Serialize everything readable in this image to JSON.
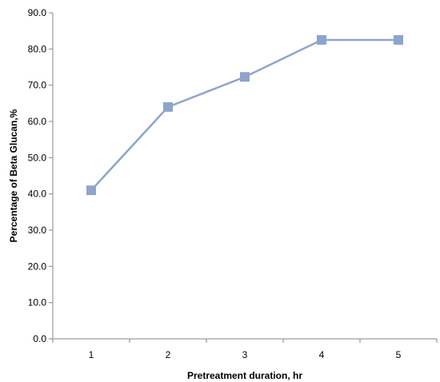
{
  "chart_data": {
    "type": "line",
    "title": "",
    "xlabel": "Pretreatment duration, hr",
    "ylabel": "Percentage of Beta Glucan,%",
    "x": [
      1,
      2,
      3,
      4,
      5
    ],
    "x_tick_labels": [
      "1",
      "2",
      "3",
      "4",
      "5"
    ],
    "y_tick_labels": [
      "0.0",
      "10.0",
      "20.0",
      "30.0",
      "40.0",
      "50.0",
      "60.0",
      "70.0",
      "80.0",
      "90.0"
    ],
    "ylim": [
      0,
      90
    ],
    "y_tick_step": 10,
    "grid": false,
    "legend": "none",
    "series": [
      {
        "values": [
          41.0,
          64.0,
          72.3,
          82.5,
          82.5
        ],
        "color": "#8EA5CB",
        "marker": "square"
      }
    ]
  }
}
